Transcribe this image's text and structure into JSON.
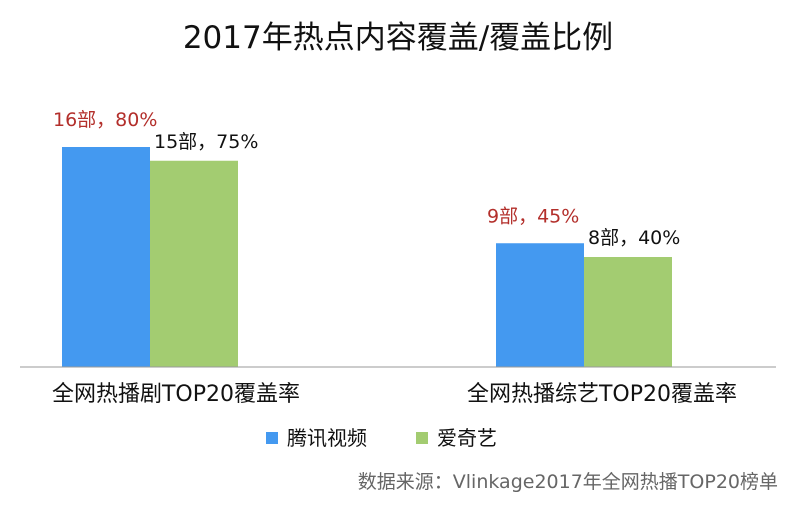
{
  "chart_data": {
    "type": "bar",
    "title": "2017年热点内容覆盖/覆盖比例",
    "categories": [
      "全网热播剧TOP20覆盖率",
      "全网热播综艺TOP20覆盖率"
    ],
    "series": [
      {
        "name": "腾讯视频",
        "values": [
          80,
          45
        ],
        "data_labels": [
          "16部，80%",
          "9部，45%"
        ],
        "color": "#4499f0",
        "label_color": "#b32f2b"
      },
      {
        "name": "爱奇艺",
        "values": [
          75,
          40
        ],
        "data_labels": [
          "15部，75%",
          "8部，40%"
        ],
        "color": "#a3cc71",
        "label_color": "#111111"
      }
    ],
    "ylim": [
      0,
      100
    ],
    "grid": false,
    "legend_position": "bottom"
  },
  "source": "数据来源：Vlinkage2017年全网热播TOP20榜单",
  "colors": {
    "axis": "#9a9a9a",
    "background": "#ffffff"
  }
}
